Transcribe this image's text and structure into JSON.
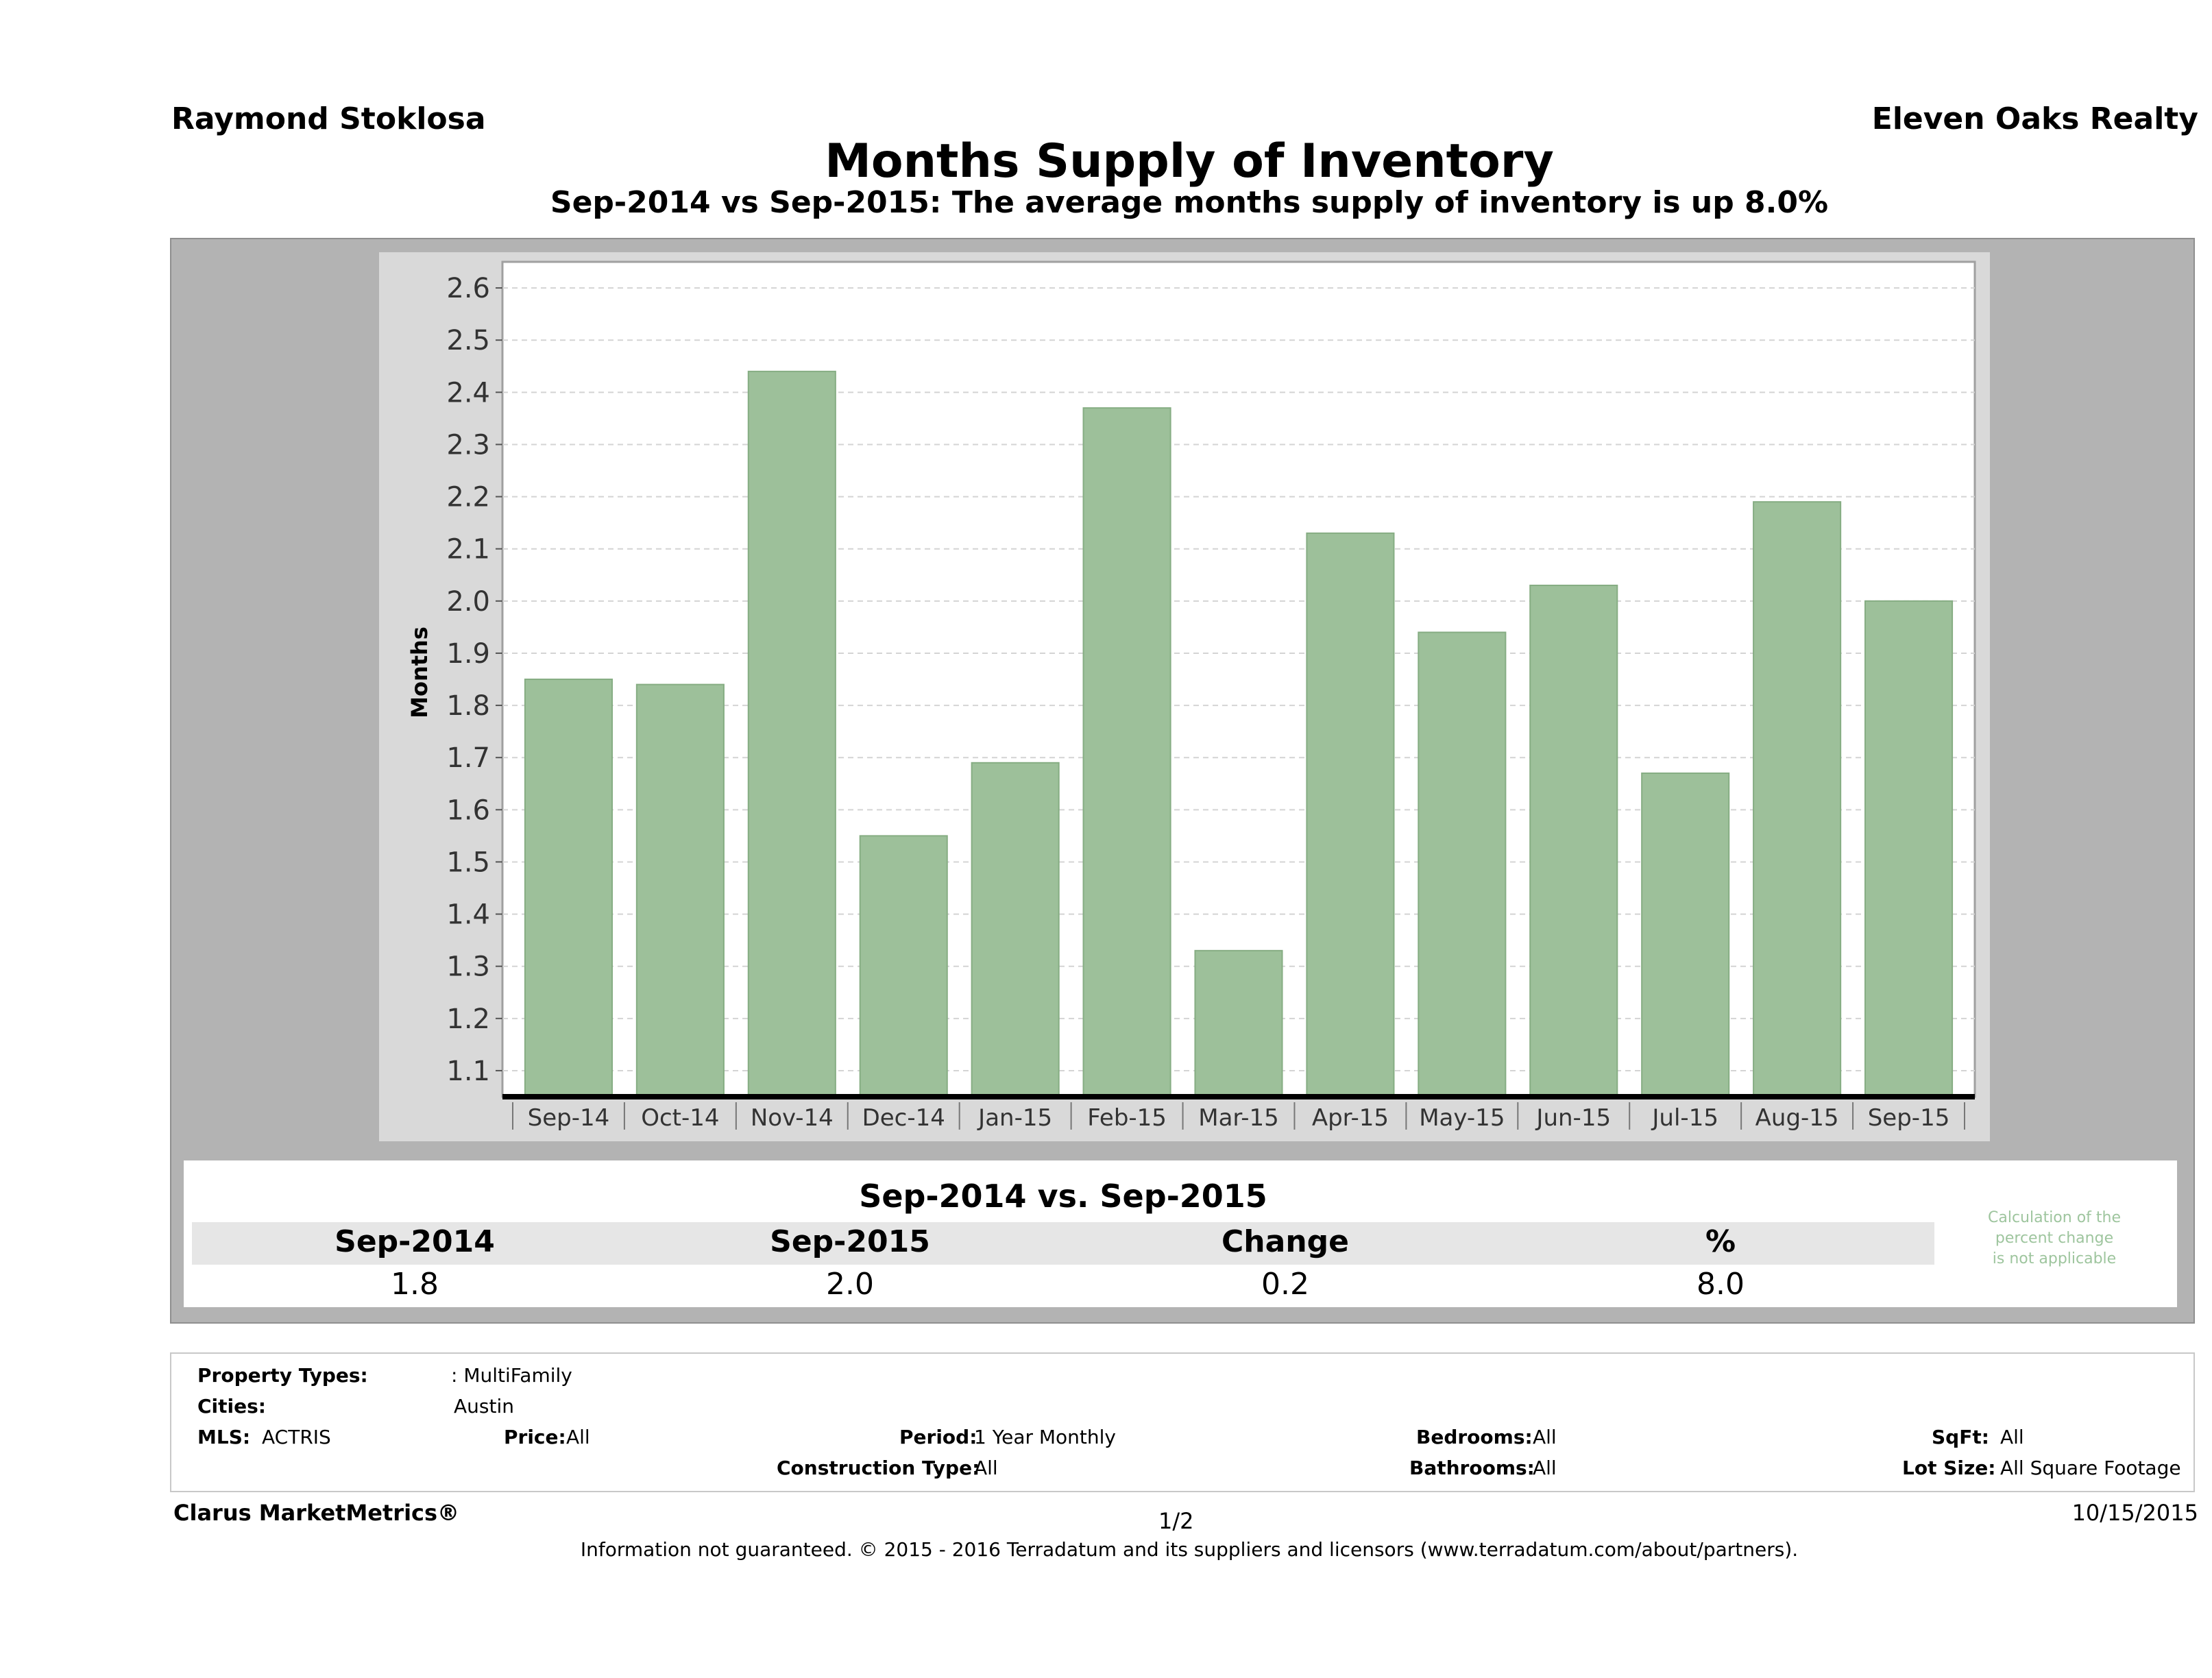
{
  "header": {
    "agent": "Raymond Stoklosa",
    "brokerage": "Eleven Oaks Realty",
    "title": "Months Supply of Inventory",
    "subtitle": "Sep-2014 vs Sep-2015: The average months supply of inventory is up 8.0%"
  },
  "chart_data": {
    "type": "bar",
    "ylabel": "Months",
    "xlabel": "",
    "ylim": [
      1.05,
      2.65
    ],
    "yticks": [
      "1.1",
      "1.2",
      "1.3",
      "1.4",
      "1.5",
      "1.6",
      "1.7",
      "1.8",
      "1.9",
      "2.0",
      "2.1",
      "2.2",
      "2.3",
      "2.4",
      "2.5",
      "2.6"
    ],
    "grid": true,
    "bar_color": "#9dc09a",
    "categories": [
      "Sep-14",
      "Oct-14",
      "Nov-14",
      "Dec-14",
      "Jan-15",
      "Feb-15",
      "Mar-15",
      "Apr-15",
      "May-15",
      "Jun-15",
      "Jul-15",
      "Aug-15",
      "Sep-15"
    ],
    "values": [
      1.85,
      1.84,
      2.44,
      1.55,
      1.69,
      2.37,
      1.33,
      2.13,
      1.94,
      2.03,
      1.67,
      2.19,
      2.0
    ]
  },
  "stats": {
    "title": "Sep-2014 vs. Sep-2015",
    "headers": [
      "Sep-2014",
      "Sep-2015",
      "Change",
      "%"
    ],
    "values": [
      "1.8",
      "2.0",
      "0.2",
      "8.0"
    ],
    "note_line1": "Calculation of the",
    "note_line2": "percent change",
    "note_line3": "is not applicable"
  },
  "criteria": {
    "property_types_label": "Property Types:",
    "property_types_value": ": MultiFamily",
    "cities_label": "Cities:",
    "cities_value": "Austin",
    "mls_label": "MLS:",
    "mls_value": "ACTRIS",
    "price_label": "Price:",
    "price_value": "All",
    "period_label": "Period:",
    "period_value": "1 Year Monthly",
    "construction_label": "Construction Type:",
    "construction_value": "All",
    "bedrooms_label": "Bedrooms:",
    "bedrooms_value": "All",
    "bathrooms_label": "Bathrooms:",
    "bathrooms_value": "All",
    "sqft_label": "SqFt:",
    "sqft_value": "All",
    "lot_label": "Lot Size:",
    "lot_value": "All Square Footage"
  },
  "footer": {
    "product": "Clarus MarketMetrics®",
    "page": "1/2",
    "date": "10/15/2015",
    "disclaimer": "Information not guaranteed. © 2015 - 2016 Terradatum and its suppliers and licensors (www.terradatum.com/about/partners)."
  }
}
